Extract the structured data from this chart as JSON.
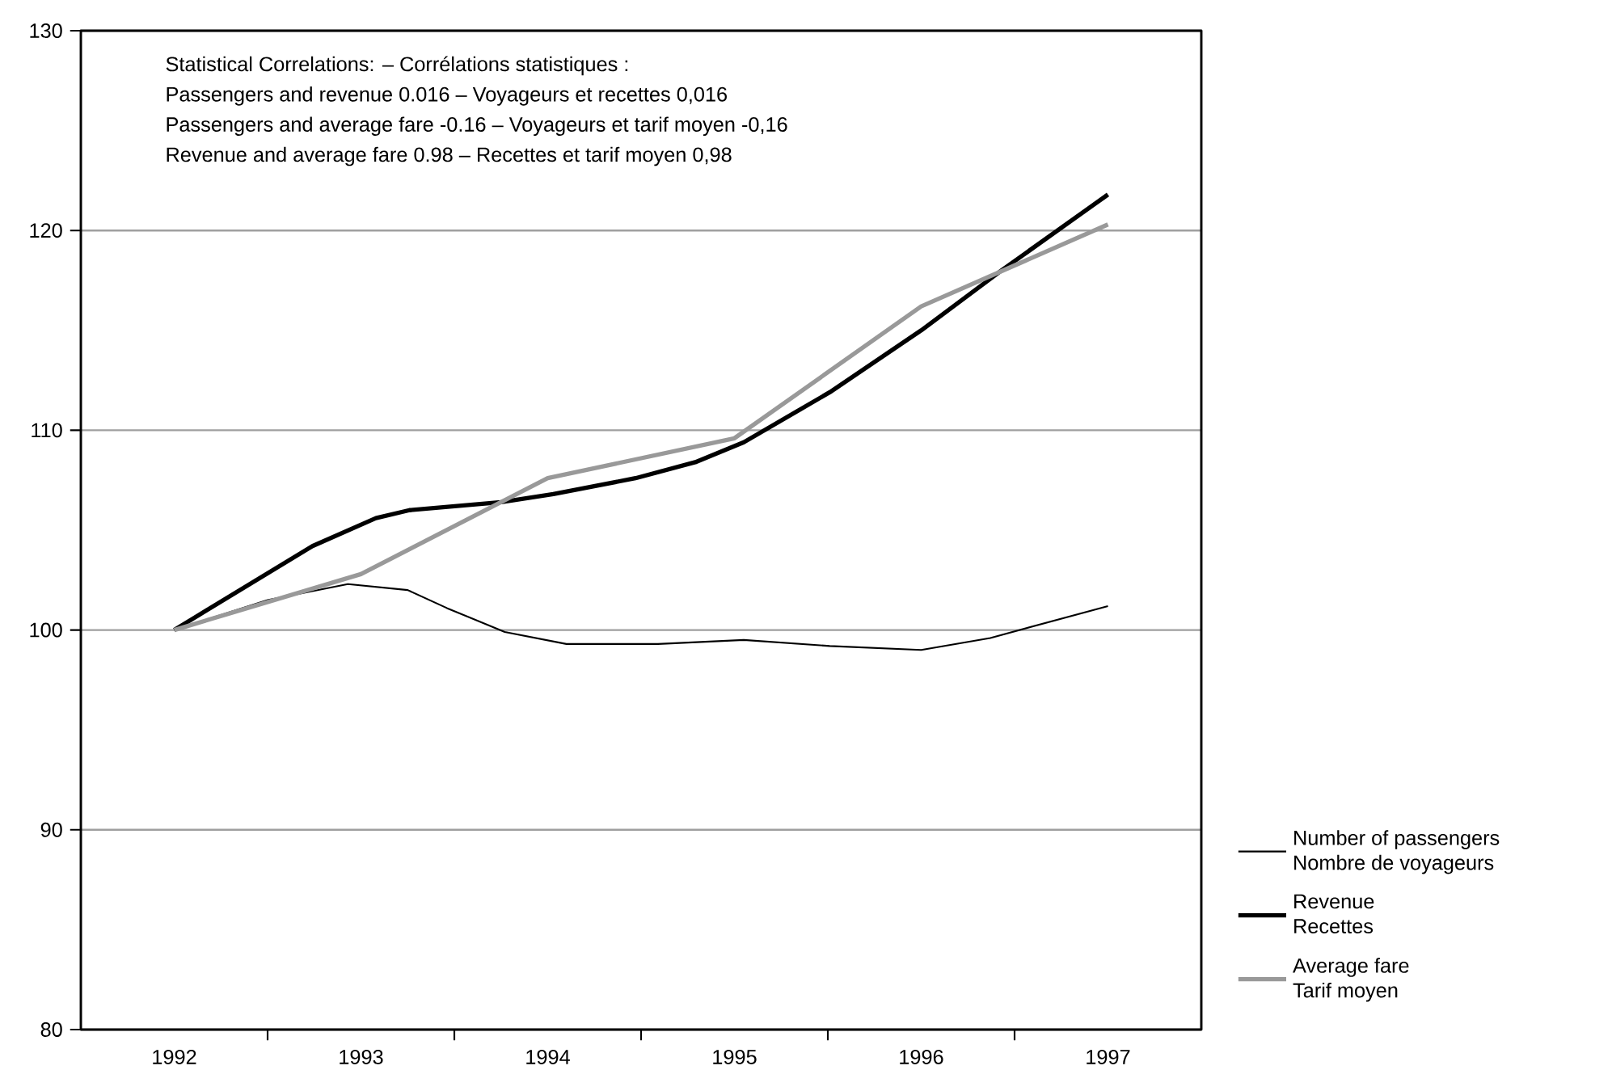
{
  "chart_data": {
    "type": "line",
    "annotations": [
      "Statistical Correlations: – Corrélations statistiques :",
      "Passengers and revenue 0.016 – Voyageurs et recettes 0,016",
      "Passengers and average fare -0.16 – Voyageurs et tarif moyen -0,16",
      "Revenue and average fare 0.98 – Recettes et tarif moyen 0,98"
    ],
    "series": [
      {
        "name": "Number of passengers\nNombre de voyageurs",
        "color": "#000000",
        "x": [
          1992,
          1992.5,
          1992.93,
          1993.25,
          1993.46,
          1993.77,
          1994.1,
          1994.59,
          1995.05,
          1995.51,
          1996,
          1996.37,
          1997
        ],
        "values": [
          100,
          101.5,
          102.3,
          102.0,
          101.1,
          99.9,
          99.3,
          99.3,
          99.5,
          99.2,
          99.0,
          99.6,
          101.2
        ]
      },
      {
        "name": "Revenue\nRecettes",
        "color": "#000000",
        "x": [
          1992,
          1992.74,
          1993.08,
          1993.26,
          1993.75,
          1994.03,
          1994.47,
          1994.79,
          1995.05,
          1995.51,
          1996,
          1996.43,
          1997
        ],
        "values": [
          100,
          104.2,
          105.6,
          106.0,
          106.4,
          106.8,
          107.6,
          108.4,
          109.4,
          111.9,
          115.0,
          118.0,
          121.8
        ]
      },
      {
        "name": "Average fare\nTarif moyen",
        "color": "#999999",
        "x": [
          1992,
          1993,
          1994,
          1995,
          1996,
          1997
        ],
        "values": [
          100,
          102.8,
          107.6,
          109.6,
          116.2,
          120.3
        ]
      }
    ],
    "xlim": [
      1991.5,
      1997.5
    ],
    "xticks": [
      1992,
      1993,
      1994,
      1995,
      1996,
      1997,
      {
        "value": 1992.5,
        "label": null
      },
      {
        "value": 1993.5,
        "label": null
      },
      {
        "value": 1994.5,
        "label": null
      },
      {
        "value": 1995.5,
        "label": null
      },
      {
        "value": 1996.5,
        "label": null
      }
    ],
    "ylim": [
      80,
      130
    ],
    "yticks": [
      80,
      90,
      100,
      110,
      120,
      130
    ],
    "grid": "y",
    "legend": "right",
    "marker": "none",
    "line_style": "solid"
  }
}
